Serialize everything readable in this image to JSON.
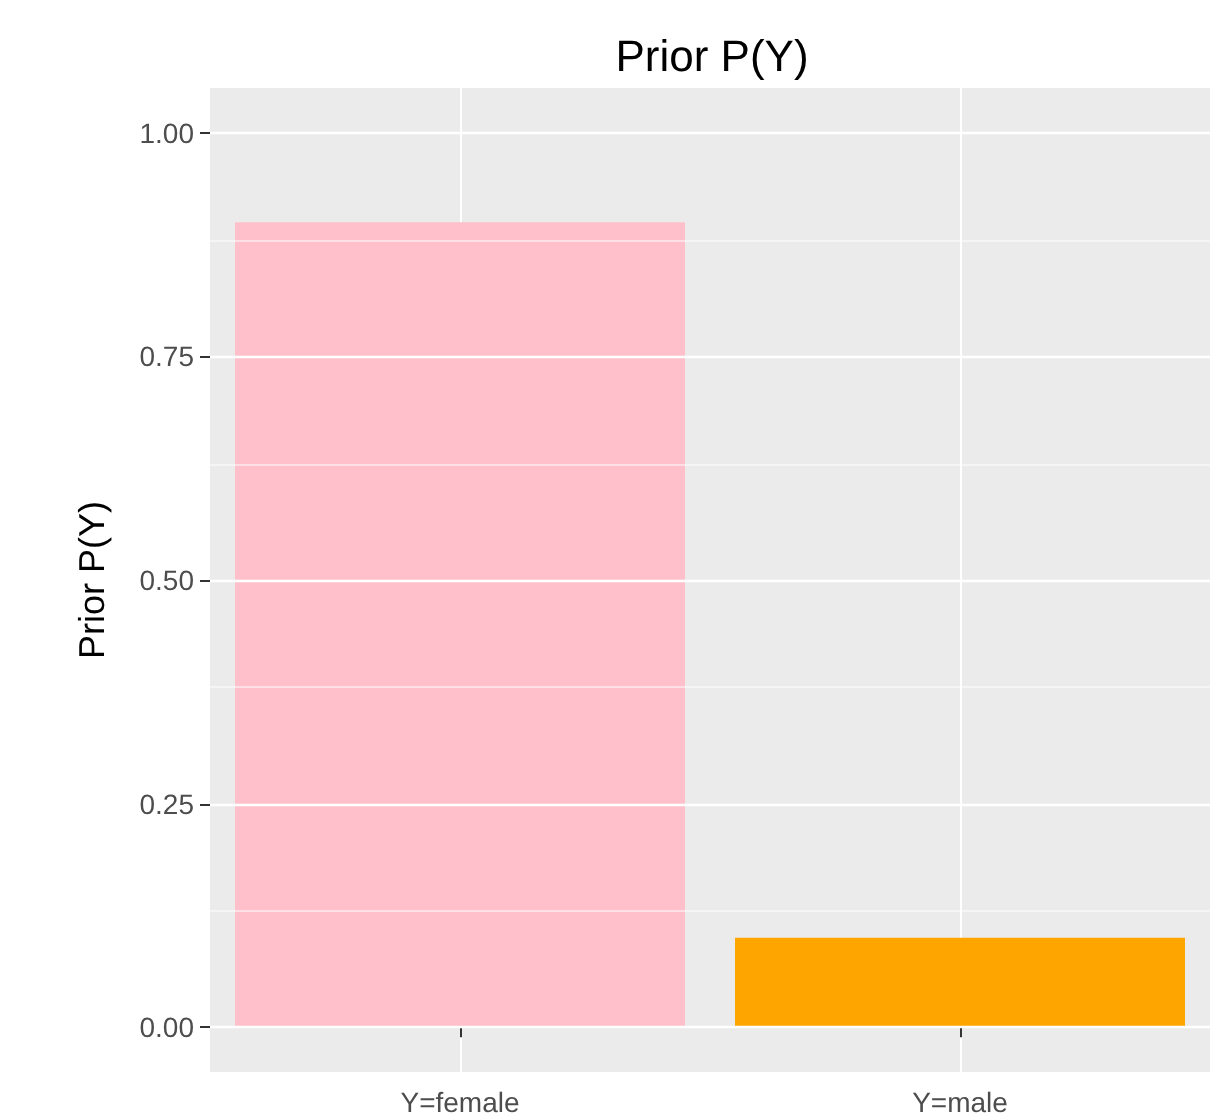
{
  "chart_data": {
    "type": "bar",
    "title": "Prior P(Y)",
    "ylabel": "Prior P(Y)",
    "categories": [
      "Y=female",
      "Y=male"
    ],
    "values": [
      0.9,
      0.1
    ],
    "colors": [
      "#ffc0cb",
      "#ffa500"
    ],
    "ylim": [
      -0.05,
      1.05
    ],
    "yticks": [
      {
        "value": 0,
        "label": "0.00"
      },
      {
        "value": 0.25,
        "label": "0.25"
      },
      {
        "value": 0.5,
        "label": "0.50"
      },
      {
        "value": 0.75,
        "label": "0.75"
      },
      {
        "value": 1,
        "label": "1.00"
      }
    ],
    "grid": true
  }
}
